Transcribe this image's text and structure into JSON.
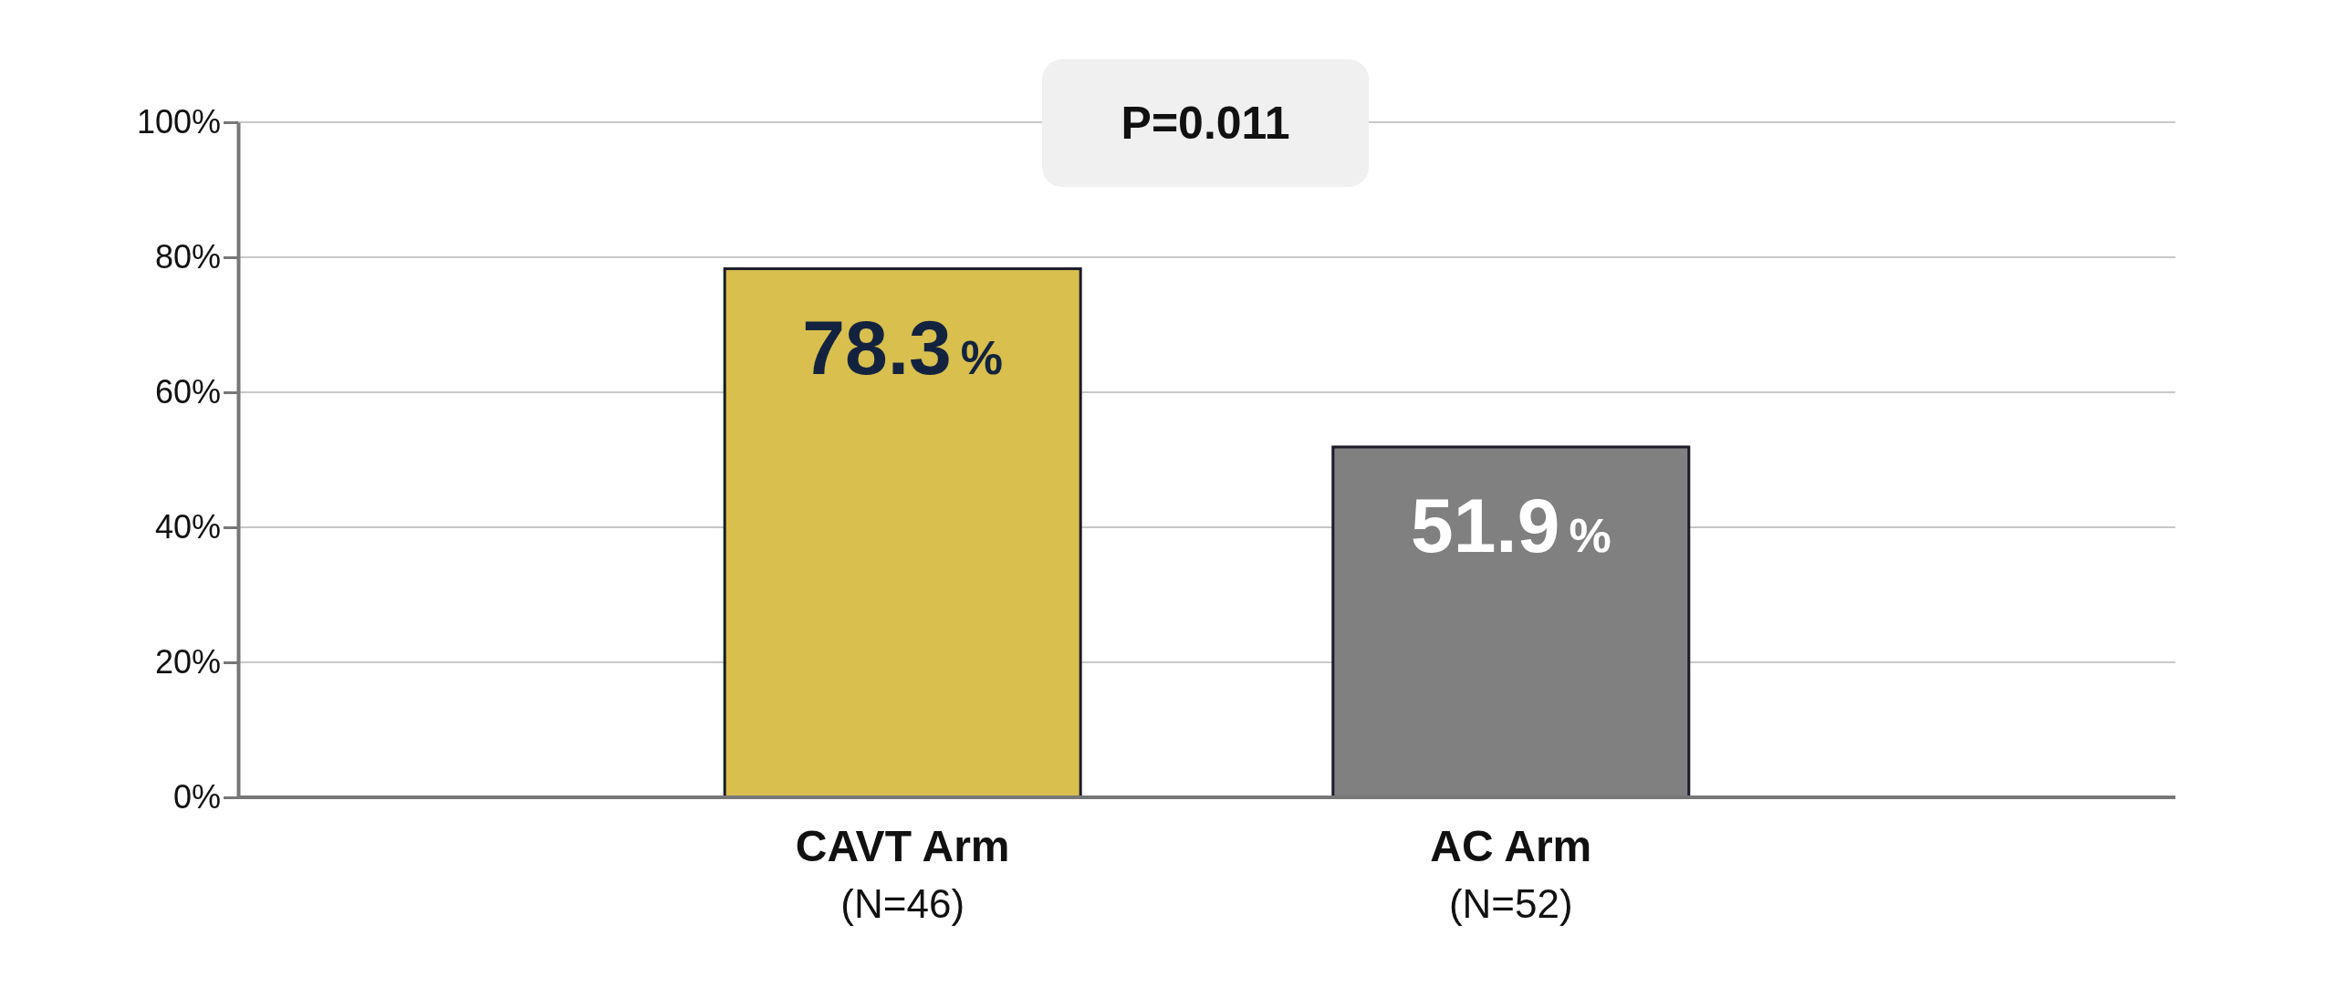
{
  "chart_data": {
    "type": "bar",
    "categories": [
      "CAVT Arm\n(N=46)",
      "AC Arm\n(N=52)"
    ],
    "values": [
      78.3,
      51.9
    ],
    "colors": [
      "#d8bf4e",
      "#808080"
    ],
    "value_labels": [
      "78.3%",
      "51.9%"
    ],
    "ylim": [
      0,
      100
    ],
    "yticks": [
      {
        "value": 0,
        "label": "0%"
      },
      {
        "value": 20,
        "label": "20%"
      },
      {
        "value": 40,
        "label": "40%"
      },
      {
        "value": 60,
        "label": "60%"
      },
      {
        "value": 80,
        "label": "80%"
      },
      {
        "value": 100,
        "label": "100%"
      }
    ],
    "grid": "y",
    "annotations": [
      "P=0.011"
    ]
  }
}
